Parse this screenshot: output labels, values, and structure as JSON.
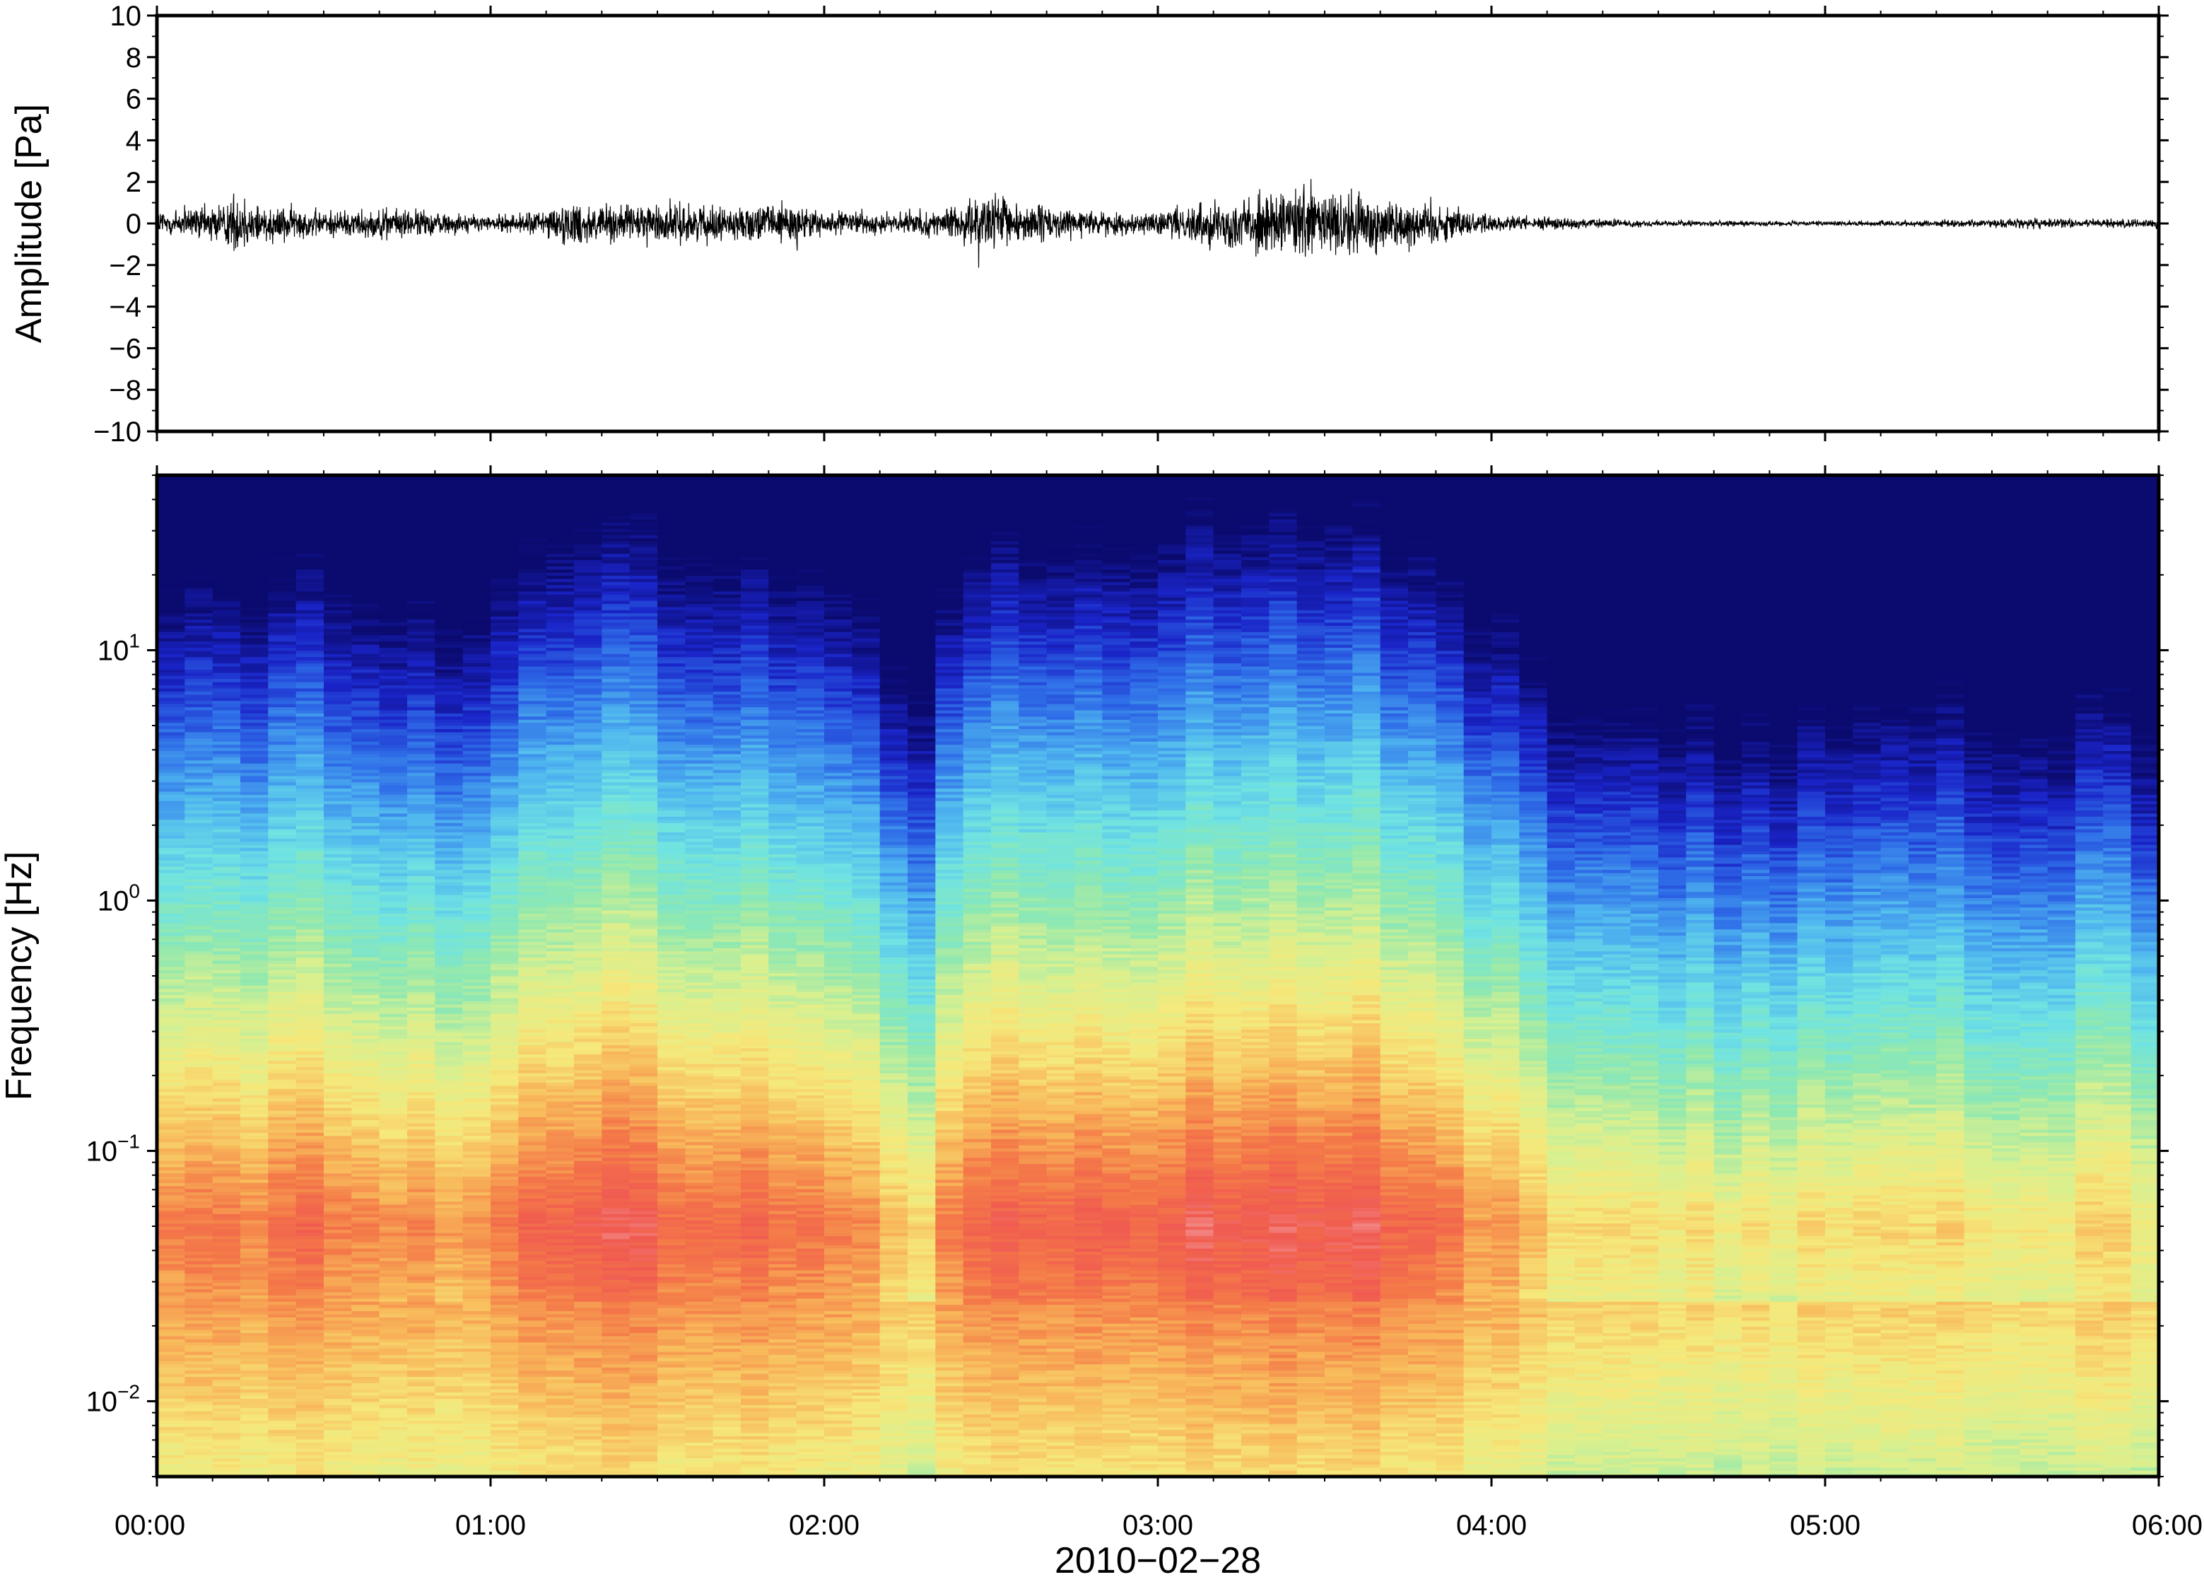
{
  "chart_data": [
    {
      "type": "line",
      "ylabel": "Amplitude [Pa]",
      "ylim": [
        -10,
        10
      ],
      "yticks": [
        "10",
        "8",
        "6",
        "4",
        "2",
        "0",
        "−2",
        "−4",
        "−6",
        "−8",
        "−10"
      ],
      "ytick_values": [
        10,
        8,
        6,
        4,
        2,
        0,
        -2,
        -4,
        -6,
        -8,
        -10
      ],
      "xlim_hours": [
        0,
        6
      ],
      "series": [
        {
          "envelope": {
            "time_hours": [
              0.0,
              0.15,
              0.25,
              0.33,
              0.5,
              0.75,
              0.9,
              1.0,
              1.1,
              1.25,
              1.4,
              1.55,
              1.75,
              1.9,
              2.0,
              2.2,
              2.35,
              2.5,
              2.65,
              2.8,
              3.0,
              3.15,
              3.3,
              3.45,
              3.6,
              3.7,
              3.85,
              4.0,
              4.25,
              4.5,
              5.0,
              5.5,
              5.6,
              5.8,
              6.0
            ],
            "amplitude_pa": [
              1.0,
              1.2,
              2.0,
              1.3,
              0.9,
              1.0,
              0.7,
              0.5,
              0.7,
              1.5,
              1.2,
              1.4,
              1.0,
              1.5,
              0.8,
              0.7,
              0.8,
              2.0,
              1.2,
              0.8,
              0.7,
              1.6,
              2.0,
              2.5,
              2.2,
              2.0,
              1.3,
              0.6,
              0.35,
              0.2,
              0.15,
              0.25,
              0.35,
              0.3,
              0.3
            ]
          }
        }
      ]
    },
    {
      "type": "heatmap",
      "ylabel": "Frequency [Hz]",
      "yscale": "log",
      "ylim": [
        0.005,
        50
      ],
      "ytick_base": "10",
      "yticks": [
        {
          "value": 10,
          "exponent": "1"
        },
        {
          "value": 1,
          "exponent": "0"
        },
        {
          "value": 0.1,
          "exponent": "−1"
        },
        {
          "value": 0.01,
          "exponent": "−2"
        }
      ],
      "xlabel": "2010−02−28",
      "xticks": [
        "00:00",
        "01:00",
        "02:00",
        "03:00",
        "04:00",
        "05:00",
        "06:00"
      ],
      "xlim_hours": [
        0,
        6
      ],
      "colormap": [
        "#0b0a6e",
        "#1a24c8",
        "#2f6ee8",
        "#4fb6ef",
        "#6fe3e3",
        "#8fe8b0",
        "#d8f090",
        "#f6e87a",
        "#f8b85a",
        "#f47a48",
        "#f05a50",
        "#f49a9a"
      ],
      "power_level_breakpoints": {
        "time_hours": [
          0.0,
          0.5,
          1.0,
          1.1,
          1.5,
          2.0,
          2.2,
          2.3,
          2.4,
          3.0,
          3.5,
          3.8,
          4.0,
          4.3,
          4.6,
          5.0,
          5.5,
          6.0
        ],
        "level_shift": [
          0.0,
          0.0,
          -0.05,
          0.05,
          0.05,
          0.0,
          -0.1,
          -0.15,
          0.05,
          0.05,
          0.08,
          0.05,
          -0.05,
          -0.18,
          -0.2,
          -0.2,
          -0.18,
          -0.18
        ]
      }
    }
  ]
}
